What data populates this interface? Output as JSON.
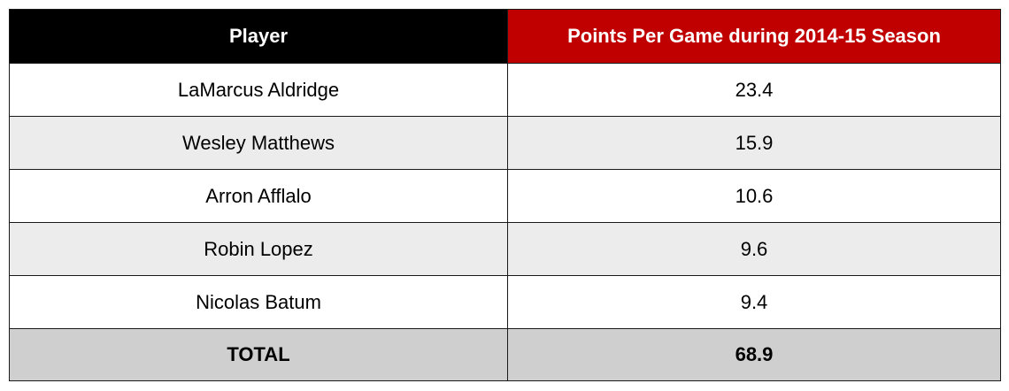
{
  "colors": {
    "player_header_bg": "#000000",
    "ppg_header_bg": "#c00000",
    "header_text": "#ffffff",
    "row_alt_bg": "#ececec",
    "total_bg": "#cfcfcf"
  },
  "chart_data": {
    "type": "table",
    "columns": [
      "Player",
      "Points Per Game during 2014-15 Season"
    ],
    "rows": [
      {
        "player": "LaMarcus Aldridge",
        "ppg": "23.4"
      },
      {
        "player": "Wesley Matthews",
        "ppg": "15.9"
      },
      {
        "player": "Arron Afflalo",
        "ppg": "10.6"
      },
      {
        "player": "Robin Lopez",
        "ppg": "9.6"
      },
      {
        "player": "Nicolas Batum",
        "ppg": "9.4"
      }
    ],
    "total": {
      "label": "TOTAL",
      "ppg": "68.9"
    }
  }
}
